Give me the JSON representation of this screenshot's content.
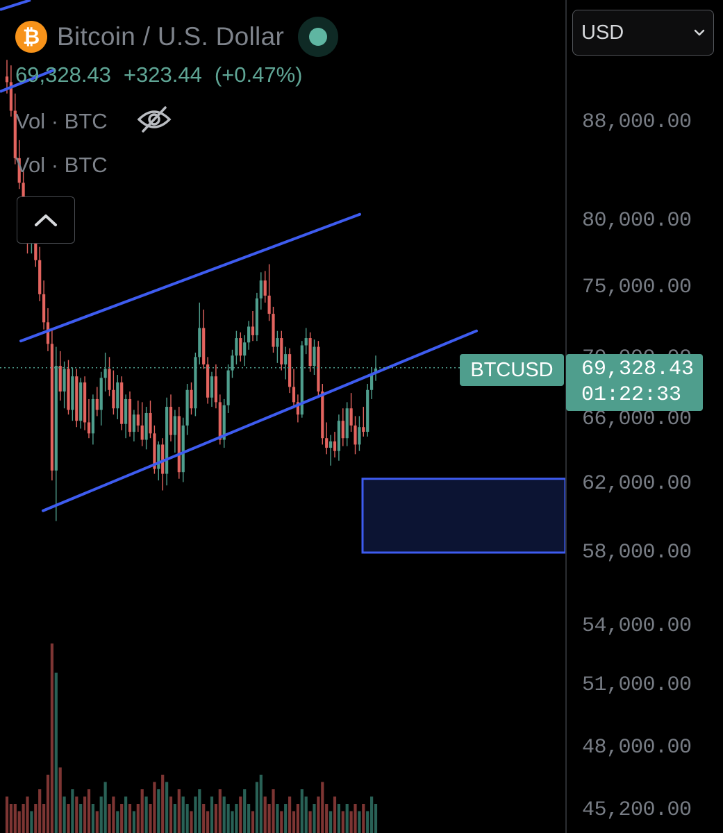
{
  "header": {
    "logo_glyph": "₿",
    "symbol_title": "Bitcoin / U.S. Dollar",
    "last_price": "69,328.43",
    "change": "+323.44",
    "change_pct": "(+0.47%)",
    "volume_label_1": "Vol · BTC",
    "volume_label_2": "Vol · BTC",
    "icons": [
      "bitcoin-logo",
      "market-open-dot",
      "eye-off-icon",
      "chevron-up-icon"
    ]
  },
  "currency_select": {
    "value": "USD"
  },
  "price_axis": {
    "ticks": [
      "88,000.00",
      "80,000.00",
      "75,000.00",
      "70,000.00",
      "66,000.00",
      "62,000.00",
      "58,000.00",
      "54,000.00",
      "51,000.00",
      "48,000.00",
      "45,200.00"
    ]
  },
  "price_tag": {
    "ticker": "BTCUSD",
    "price": "69,328.43",
    "countdown": "01:22:33"
  },
  "colors": {
    "up": "#4f9e8d",
    "down": "#e3645f",
    "channel": "#3e5cf0",
    "zone_fill": "#0c1433",
    "background": "#000000"
  },
  "chart_data": {
    "type": "candlestick",
    "symbol": "BTCUSD",
    "scale": "log",
    "y_ticks": [
      88000,
      80000,
      75000,
      70000,
      66000,
      62000,
      58000,
      54000,
      51000,
      48000,
      45200
    ],
    "last_price": 69328.43,
    "candles": [
      [
        92000,
        93500,
        90500,
        91500
      ],
      [
        91500,
        93000,
        88500,
        89000
      ],
      [
        89000,
        90500,
        84500,
        85000
      ],
      [
        85000,
        86500,
        82500,
        83000
      ],
      [
        83000,
        84000,
        79500,
        80000
      ],
      [
        80000,
        81500,
        77500,
        78500
      ],
      [
        78500,
        80500,
        77500,
        79500
      ],
      [
        79500,
        80000,
        76500,
        77000
      ],
      [
        77000,
        78000,
        74000,
        74500
      ],
      [
        74500,
        75500,
        72000,
        72500
      ],
      [
        72500,
        73500,
        70500,
        71000
      ],
      [
        71000,
        72000,
        62200,
        62800
      ],
      [
        62800,
        70800,
        59800,
        69500
      ],
      [
        69500,
        70500,
        67200,
        67800
      ],
      [
        67800,
        69800,
        66700,
        69300
      ],
      [
        69300,
        69900,
        66300,
        66600
      ],
      [
        66600,
        69400,
        65900,
        68800
      ],
      [
        68800,
        69300,
        65500,
        65900
      ],
      [
        65900,
        68700,
        65400,
        68400
      ],
      [
        68400,
        68800,
        65300,
        65800
      ],
      [
        65800,
        67300,
        64800,
        65100
      ],
      [
        65100,
        67600,
        64400,
        67300
      ],
      [
        67300,
        68100,
        66200,
        66600
      ],
      [
        66600,
        69100,
        65600,
        68700
      ],
      [
        68700,
        70400,
        67800,
        69300
      ],
      [
        69300,
        70100,
        67500,
        67900
      ],
      [
        67900,
        69200,
        66300,
        66700
      ],
      [
        66700,
        68900,
        66000,
        68400
      ],
      [
        68400,
        68800,
        65300,
        65700
      ],
      [
        65700,
        67600,
        64800,
        67300
      ],
      [
        67300,
        67800,
        64900,
        65200
      ],
      [
        65200,
        66600,
        64600,
        66300
      ],
      [
        66300,
        67200,
        65200,
        65600
      ],
      [
        65600,
        67100,
        64300,
        64700
      ],
      [
        64700,
        66800,
        64100,
        66400
      ],
      [
        66400,
        67200,
        64800,
        65100
      ],
      [
        65100,
        65600,
        62600,
        62900
      ],
      [
        62900,
        64600,
        62200,
        64400
      ],
      [
        64400,
        64800,
        61600,
        62600
      ],
      [
        62600,
        67400,
        61900,
        66800
      ],
      [
        66800,
        67600,
        64600,
        65000
      ],
      [
        65000,
        66600,
        63900,
        66200
      ],
      [
        66200,
        66800,
        62300,
        62700
      ],
      [
        62700,
        66100,
        62100,
        65600
      ],
      [
        65600,
        68300,
        65000,
        67900
      ],
      [
        67900,
        68400,
        66300,
        66700
      ],
      [
        66700,
        70400,
        66200,
        70100
      ],
      [
        70100,
        73900,
        69600,
        72100
      ],
      [
        72100,
        73400,
        69300,
        69600
      ],
      [
        69600,
        70100,
        67000,
        67400
      ],
      [
        67400,
        69100,
        66800,
        68800
      ],
      [
        68800,
        69600,
        66700,
        67100
      ],
      [
        67100,
        67600,
        64400,
        64700
      ],
      [
        64700,
        67300,
        64200,
        66900
      ],
      [
        66900,
        69600,
        66400,
        69200
      ],
      [
        69200,
        70600,
        68700,
        70200
      ],
      [
        70200,
        71900,
        69600,
        71400
      ],
      [
        71400,
        71800,
        69800,
        70200
      ],
      [
        70200,
        71600,
        69500,
        71100
      ],
      [
        71100,
        72600,
        70600,
        72200
      ],
      [
        72200,
        73300,
        71200,
        71600
      ],
      [
        71600,
        74600,
        71200,
        74200
      ],
      [
        74200,
        76100,
        73400,
        75500
      ],
      [
        75500,
        76200,
        73900,
        74400
      ],
      [
        74400,
        76700,
        72600,
        73100
      ],
      [
        73100,
        73600,
        70400,
        70800
      ],
      [
        70800,
        71900,
        69700,
        71400
      ],
      [
        71400,
        71900,
        69200,
        69600
      ],
      [
        69600,
        70800,
        68600,
        70300
      ],
      [
        70300,
        70700,
        67700,
        68100
      ],
      [
        68100,
        69300,
        66700,
        67100
      ],
      [
        67100,
        67600,
        65800,
        66300
      ],
      [
        66300,
        71200,
        66100,
        70900
      ],
      [
        70900,
        72100,
        70300,
        71400
      ],
      [
        71400,
        71800,
        69100,
        69500
      ],
      [
        69500,
        71300,
        68900,
        70800
      ],
      [
        70800,
        71200,
        67400,
        67800
      ],
      [
        67800,
        68300,
        64400,
        64800
      ],
      [
        64800,
        65800,
        63800,
        64200
      ],
      [
        64200,
        65000,
        63100,
        64600
      ],
      [
        64600,
        65200,
        63600,
        64000
      ],
      [
        64000,
        66300,
        63400,
        65900
      ],
      [
        65900,
        66700,
        64300,
        64800
      ],
      [
        64800,
        67100,
        64300,
        66700
      ],
      [
        66700,
        67700,
        65200,
        65600
      ],
      [
        65600,
        66200,
        63800,
        64400
      ],
      [
        64400,
        66200,
        64000,
        65500
      ],
      [
        65500,
        66800,
        64900,
        65200
      ],
      [
        65200,
        68300,
        64900,
        67900
      ],
      [
        67900,
        69400,
        67300,
        69000
      ],
      [
        69000,
        70200,
        68500,
        69328
      ]
    ],
    "channel_lines": [
      {
        "points": [
          [
            71200,
            0
          ],
          [
            80500,
            58
          ]
        ]
      },
      {
        "points": [
          [
            60400,
            6
          ],
          [
            71900,
            75
          ]
        ]
      }
    ],
    "demand_zone": {
      "top": 62300,
      "bottom": 58000
    },
    "volume": [
      5,
      4,
      4,
      3,
      4,
      5,
      3,
      4,
      6,
      4,
      8,
      26,
      22,
      9,
      5,
      4,
      6,
      5,
      4,
      5,
      6,
      4,
      3,
      5,
      7,
      4,
      5,
      3,
      4,
      5,
      4,
      3,
      4,
      6,
      5,
      4,
      7,
      6,
      8,
      7,
      5,
      4,
      6,
      5,
      4,
      3,
      5,
      6,
      4,
      3,
      5,
      4,
      6,
      5,
      4,
      3,
      4,
      5,
      6,
      4,
      3,
      7,
      8,
      5,
      4,
      6,
      4,
      3,
      4,
      5,
      3,
      4,
      6,
      5,
      3,
      4,
      5,
      7,
      4,
      3,
      5,
      4,
      3,
      4,
      3,
      4,
      3,
      4,
      3,
      5,
      4
    ]
  }
}
